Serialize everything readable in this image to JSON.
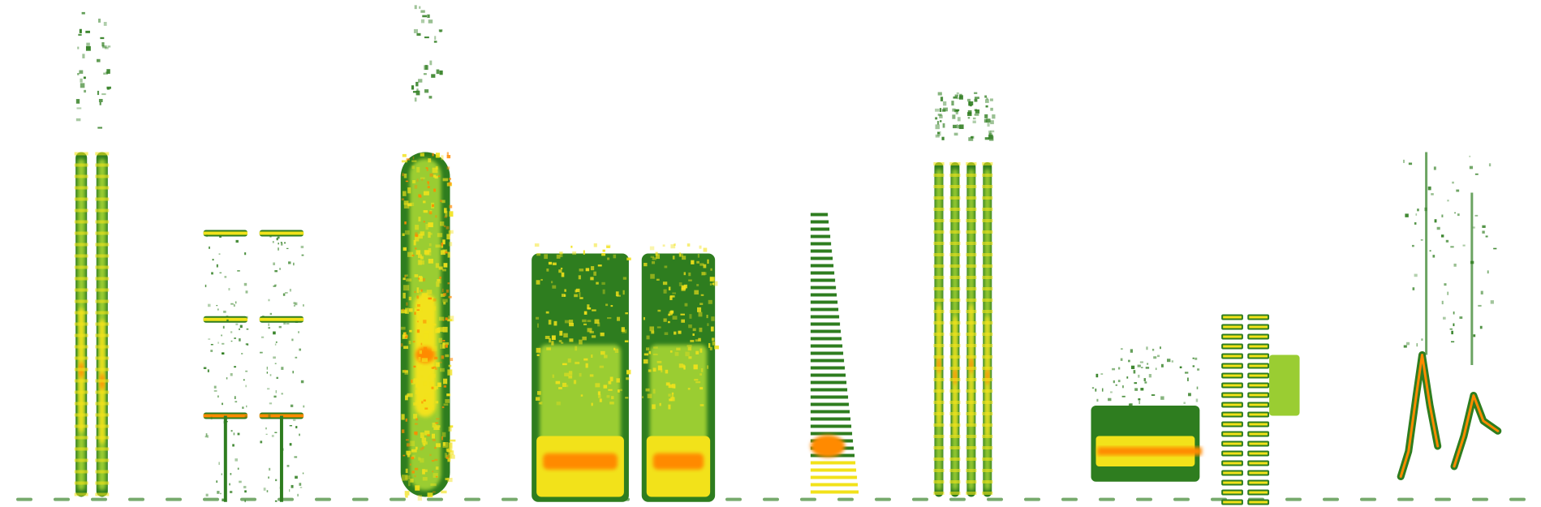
{
  "chart_data": {
    "type": "heatmap",
    "subtype": "spectrogram",
    "title": "",
    "xlabel": "",
    "ylabel": "",
    "axes_visible": false,
    "grid": false,
    "legend": "none",
    "colors": {
      "background": "#ffffff",
      "low": "#2e7d1f",
      "mid": "#9acd32",
      "high": "#f2e21a",
      "peak": "#ff8a00",
      "max": "#ff2a1a"
    },
    "x_range": [
      0,
      100
    ],
    "y_range": [
      0,
      100
    ],
    "events": [
      {
        "id": "ev1",
        "x_start": 4.6,
        "x_end": 7.3,
        "y_low": 2,
        "y_high": 99,
        "kind": "double-column pulses",
        "peak_y": 27
      },
      {
        "id": "ev2",
        "x_start": 13.2,
        "x_end": 19.7,
        "y_low": 1,
        "y_high": 56,
        "kind": "paired harmonic stacks",
        "peak_y": 18
      },
      {
        "id": "ev3",
        "x_start": 26.0,
        "x_end": 29.2,
        "y_low": 2,
        "y_high": 99,
        "kind": "broadband column",
        "peak_y": 30
      },
      {
        "id": "ev4",
        "x_start": 34.5,
        "x_end": 46.4,
        "y_low": 1,
        "y_high": 52,
        "kind": "twin noise blocks",
        "peak_y": 9
      },
      {
        "id": "ev5",
        "x_start": 52.6,
        "x_end": 55.8,
        "y_low": 1,
        "y_high": 58,
        "kind": "tapering comb",
        "peak_y": 12
      },
      {
        "id": "ev6",
        "x_start": 60.4,
        "x_end": 64.6,
        "y_low": 2,
        "y_high": 82,
        "kind": "four-column pulses",
        "peak_y": 28
      },
      {
        "id": "ev7",
        "x_start": 70.8,
        "x_end": 84.9,
        "y_low": 0,
        "y_high": 38,
        "kind": "harmonic ladder",
        "peak_y": 11
      },
      {
        "id": "ev8",
        "x_start": 90.9,
        "x_end": 97.2,
        "y_low": 2,
        "y_high": 70,
        "kind": "frequency sweeps",
        "peak_y": 15
      }
    ],
    "baseline_y": 1.5
  }
}
